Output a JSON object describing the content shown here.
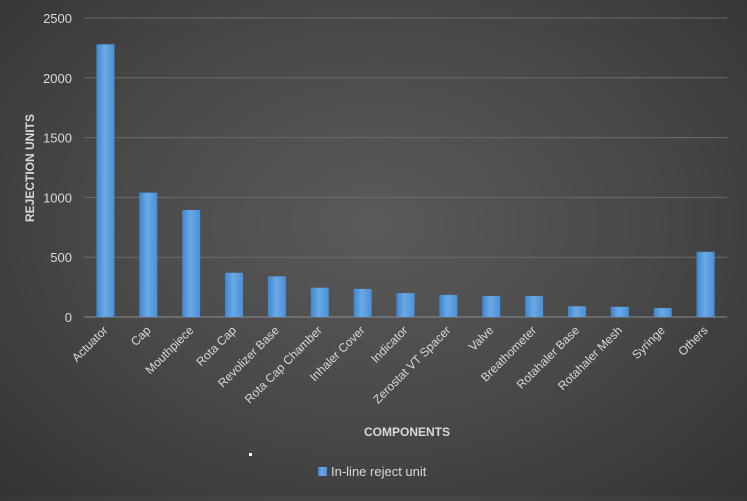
{
  "chart_data": {
    "type": "bar",
    "xlabel": "COMPONENTS",
    "ylabel": "REJECTION UNITS",
    "ylim": [
      0,
      2500
    ],
    "yticks": [
      0,
      500,
      1000,
      1500,
      2000,
      2500
    ],
    "grid": true,
    "legend_position": "bottom",
    "categories": [
      "Actuator",
      "Cap",
      "Mouthpiece",
      "Rota Cap",
      "Revolizer Base",
      "Rota Cap Chamber",
      "Inhaler Cover",
      "Indicator",
      "Zerostat VT Spacer",
      "Valve",
      "Breathometer",
      "Rotahaler Base",
      "Rotahaler Mesh",
      "Syringe",
      "Others"
    ],
    "series": [
      {
        "name": "In-line reject unit",
        "color": "#5b9bd5",
        "values": [
          2280,
          1040,
          895,
          370,
          340,
          245,
          235,
          200,
          185,
          175,
          175,
          90,
          85,
          75,
          545
        ]
      }
    ]
  }
}
